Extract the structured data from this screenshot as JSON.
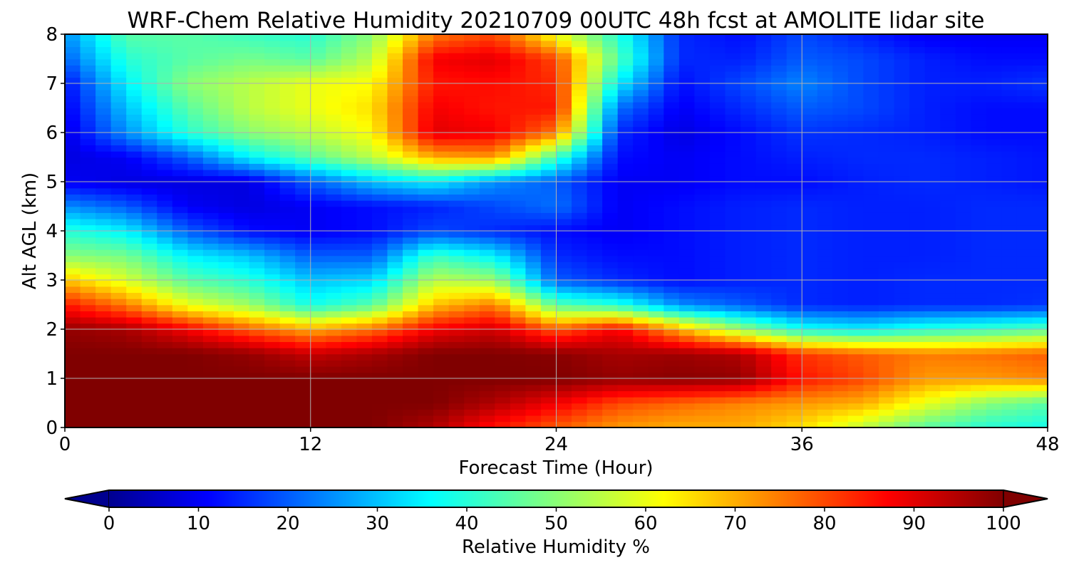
{
  "chart_data": {
    "type": "heatmap",
    "title": "WRF-Chem Relative Humidity 20210709 00UTC 48h fcst at AMOLITE lidar site",
    "xlabel": "Forecast Time (Hour)",
    "ylabel": "Alt AGL (km)",
    "xlim": [
      0,
      48
    ],
    "ylim": [
      0,
      8
    ],
    "x_ticks": [
      0,
      12,
      24,
      36,
      48
    ],
    "y_ticks": [
      0,
      1,
      2,
      3,
      4,
      5,
      6,
      7,
      8
    ],
    "grid": true,
    "colormap": "jet",
    "z_label": "Relative Humidity %",
    "zlim": [
      0,
      100
    ],
    "colorbar": {
      "label": "Relative Humidity %",
      "ticks": [
        0,
        10,
        20,
        30,
        40,
        50,
        60,
        70,
        80,
        90,
        100
      ],
      "extend": "both",
      "orientation": "horizontal",
      "placement": "bottom"
    },
    "x": [
      0,
      3,
      6,
      9,
      12,
      15,
      18,
      21,
      24,
      27,
      30,
      33,
      36,
      39,
      42,
      45,
      48
    ],
    "y": [
      0,
      0.5,
      1,
      1.5,
      2,
      2.5,
      3,
      3.5,
      4,
      4.5,
      5,
      5.5,
      6,
      6.5,
      7,
      7.5,
      8
    ],
    "z": [
      [
        100,
        100,
        100,
        100,
        100,
        100,
        95,
        85,
        78,
        72,
        70,
        70,
        65,
        55,
        45,
        40,
        38
      ],
      [
        100,
        100,
        100,
        100,
        100,
        100,
        100,
        95,
        88,
        80,
        77,
        74,
        72,
        70,
        60,
        50,
        45
      ],
      [
        100,
        100,
        100,
        100,
        100,
        100,
        100,
        100,
        100,
        98,
        99,
        98,
        85,
        80,
        72,
        72,
        74
      ],
      [
        100,
        100,
        100,
        98,
        93,
        96,
        100,
        100,
        99,
        96,
        97,
        95,
        82,
        78,
        75,
        76,
        78
      ],
      [
        98,
        96,
        88,
        78,
        70,
        76,
        88,
        92,
        78,
        88,
        70,
        52,
        38,
        35,
        40,
        42,
        45
      ],
      [
        85,
        75,
        60,
        52,
        38,
        45,
        68,
        75,
        45,
        40,
        25,
        20,
        15,
        14,
        15,
        15,
        16
      ],
      [
        68,
        58,
        45,
        40,
        30,
        32,
        55,
        52,
        20,
        15,
        12,
        14,
        15,
        14,
        15,
        15,
        15
      ],
      [
        50,
        48,
        35,
        30,
        20,
        20,
        42,
        35,
        15,
        12,
        12,
        14,
        15,
        14,
        14,
        15,
        15
      ],
      [
        40,
        35,
        20,
        12,
        10,
        12,
        18,
        15,
        12,
        10,
        12,
        14,
        15,
        14,
        14,
        15,
        15
      ],
      [
        25,
        20,
        10,
        8,
        10,
        12,
        14,
        18,
        22,
        10,
        12,
        14,
        15,
        14,
        14,
        15,
        15
      ],
      [
        10,
        8,
        8,
        8,
        20,
        30,
        35,
        25,
        20,
        10,
        10,
        12,
        12,
        14,
        15,
        14,
        13
      ],
      [
        8,
        10,
        20,
        35,
        45,
        55,
        70,
        72,
        42,
        12,
        10,
        12,
        14,
        15,
        15,
        14,
        13
      ],
      [
        8,
        25,
        40,
        50,
        55,
        62,
        90,
        88,
        75,
        15,
        8,
        12,
        16,
        15,
        14,
        12,
        12
      ],
      [
        10,
        30,
        45,
        55,
        60,
        65,
        88,
        85,
        85,
        22,
        10,
        15,
        20,
        18,
        14,
        12,
        12
      ],
      [
        12,
        35,
        50,
        55,
        60,
        62,
        85,
        86,
        83,
        35,
        12,
        18,
        24,
        18,
        14,
        14,
        16
      ],
      [
        20,
        40,
        45,
        48,
        45,
        55,
        88,
        90,
        80,
        45,
        15,
        14,
        20,
        18,
        14,
        12,
        12
      ],
      [
        25,
        45,
        45,
        42,
        40,
        50,
        75,
        80,
        60,
        40,
        15,
        12,
        18,
        14,
        10,
        10,
        10
      ]
    ]
  }
}
